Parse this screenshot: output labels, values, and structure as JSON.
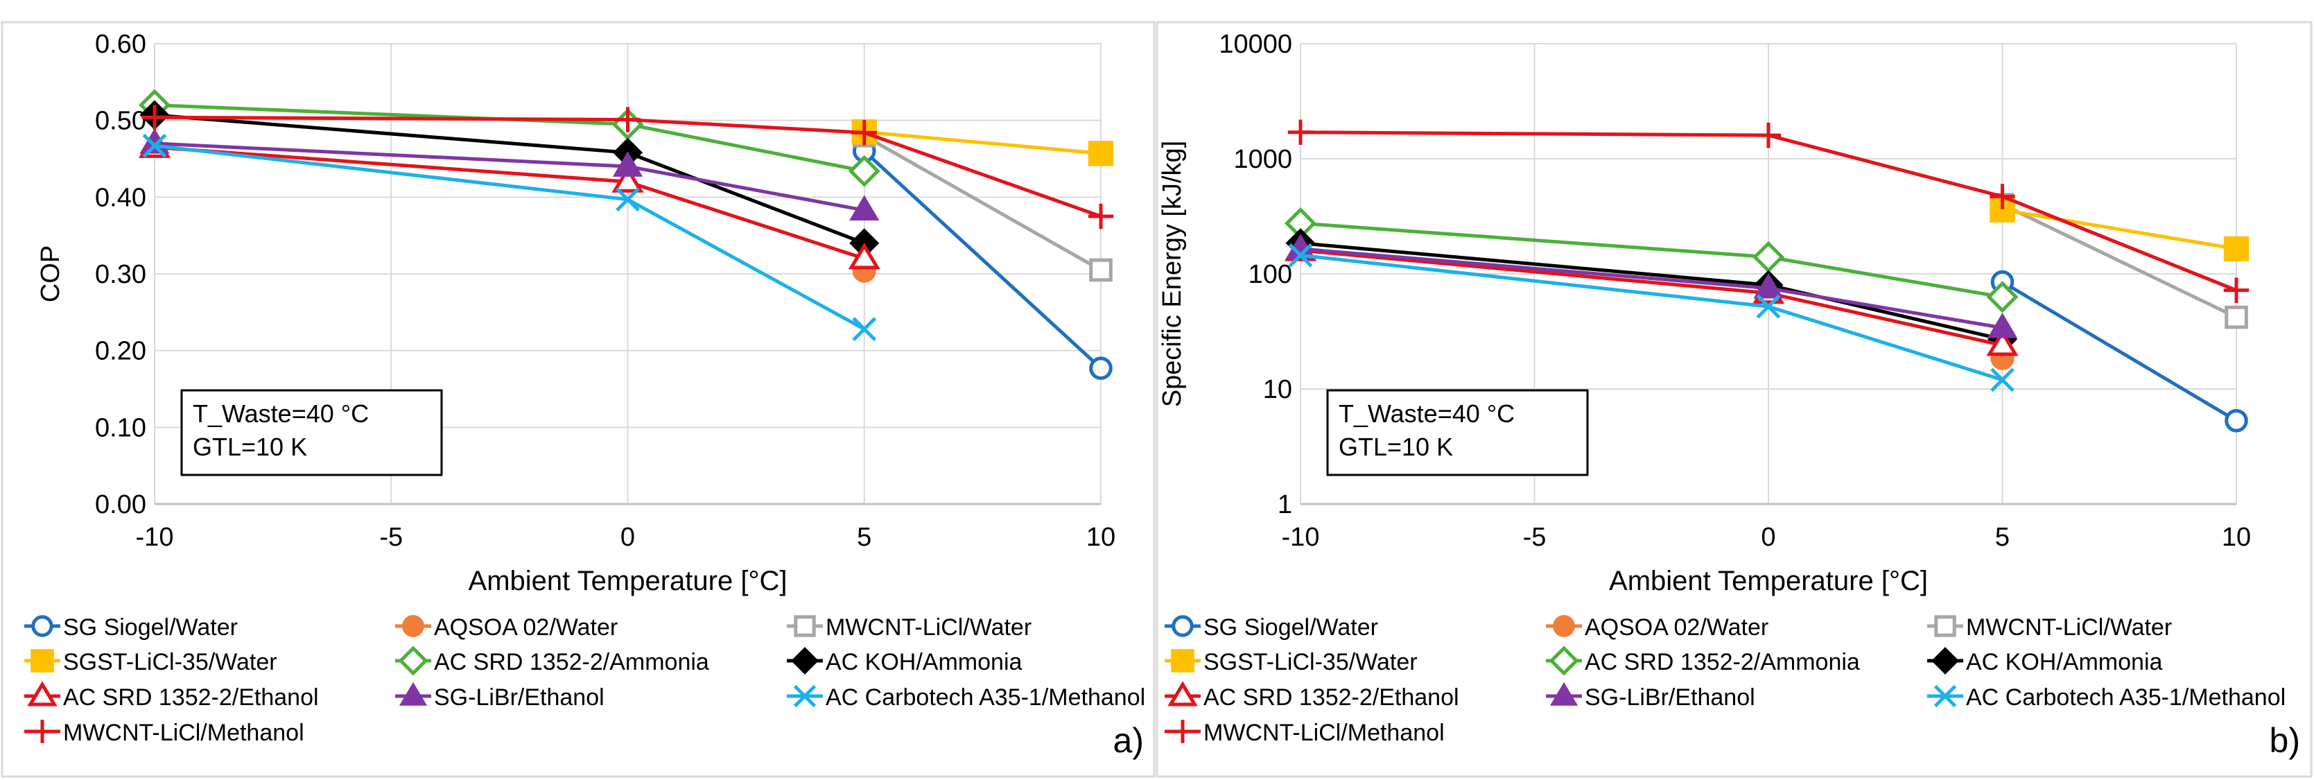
{
  "series_styles": {
    "SG Siogel/Water": {
      "color": "#1F6FC0",
      "marker": "circle-open"
    },
    "AQSOA 02/Water": {
      "color": "#F07E38",
      "marker": "circle-filled"
    },
    "MWCNT-LiCl/Water": {
      "color": "#A6A6A6",
      "marker": "square-open"
    },
    "SGST-LiCl-35/Water": {
      "color": "#FFC000",
      "marker": "square-filled"
    },
    "AC SRD 1352-2/Ammonia": {
      "color": "#4CAF3A",
      "marker": "diamond-open"
    },
    "AC KOH/Ammonia": {
      "color": "#000000",
      "marker": "diamond-filled"
    },
    "AC SRD 1352-2/Ethanol": {
      "color": "#E3131B",
      "marker": "triangle-open"
    },
    "SG-LiBr/Ethanol": {
      "color": "#7F36A4",
      "marker": "triangle-filled"
    },
    "AC Carbotech A35-1/Methanol": {
      "color": "#1CB0EB",
      "marker": "x"
    },
    "MWCNT-LiCl/Methanol": {
      "color": "#E3131B",
      "marker": "plus"
    }
  },
  "chart_data": [
    {
      "type": "line",
      "panel_label": "a)",
      "xlabel": "Ambient Temperature [°C]",
      "ylabel": "COP",
      "xlim": [
        -10,
        10
      ],
      "xticks": [
        -10,
        -5,
        0,
        5,
        10
      ],
      "ylim": [
        0,
        0.6
      ],
      "yticks": [
        "0.00",
        "0.10",
        "0.20",
        "0.30",
        "0.40",
        "0.50",
        "0.60"
      ],
      "yscale": "linear",
      "grid": true,
      "annotation": [
        "T_Waste=40 °C",
        "GTL=10 K"
      ],
      "series": [
        {
          "name": "SG Siogel/Water",
          "x": [
            5,
            10
          ],
          "y": [
            0.46,
            0.177
          ]
        },
        {
          "name": "AQSOA 02/Water",
          "x": [
            5
          ],
          "y": [
            0.304
          ]
        },
        {
          "name": "MWCNT-LiCl/Water",
          "x": [
            5,
            10
          ],
          "y": [
            0.48,
            0.305
          ]
        },
        {
          "name": "SGST-LiCl-35/Water",
          "x": [
            5,
            10
          ],
          "y": [
            0.485,
            0.457
          ]
        },
        {
          "name": "AC SRD 1352-2/Ammonia",
          "x": [
            -10,
            0,
            5
          ],
          "y": [
            0.52,
            0.495,
            0.434
          ]
        },
        {
          "name": "AC KOH/Ammonia",
          "x": [
            -10,
            0,
            5
          ],
          "y": [
            0.507,
            0.458,
            0.34
          ]
        },
        {
          "name": "AC SRD 1352-2/Ethanol",
          "x": [
            -10,
            0,
            5
          ],
          "y": [
            0.465,
            0.42,
            0.32
          ]
        },
        {
          "name": "SG-LiBr/Ethanol",
          "x": [
            -10,
            0,
            5
          ],
          "y": [
            0.47,
            0.44,
            0.383
          ]
        },
        {
          "name": "AC Carbotech A35-1/Methanol",
          "x": [
            -10,
            0,
            5
          ],
          "y": [
            0.467,
            0.397,
            0.228
          ]
        },
        {
          "name": "MWCNT-LiCl/Methanol",
          "x": [
            -10,
            0,
            5,
            10
          ],
          "y": [
            0.504,
            0.501,
            0.484,
            0.375
          ]
        }
      ]
    },
    {
      "type": "line",
      "panel_label": "b)",
      "xlabel": "Ambient Temperature [°C]",
      "ylabel": "Specific Energy [kJ/kg]",
      "xlim": [
        -10,
        10
      ],
      "xticks": [
        -10,
        -5,
        0,
        5,
        10
      ],
      "ylim": [
        1,
        10000
      ],
      "yticks": [
        "1",
        "10",
        "100",
        "1000",
        "10000"
      ],
      "yscale": "log",
      "grid": true,
      "annotation": [
        "T_Waste=40 °C",
        "GTL=10 K"
      ],
      "series": [
        {
          "name": "SG Siogel/Water",
          "x": [
            5,
            10
          ],
          "y": [
            85,
            5.3
          ]
        },
        {
          "name": "AQSOA 02/Water",
          "x": [
            5
          ],
          "y": [
            18.5
          ]
        },
        {
          "name": "MWCNT-LiCl/Water",
          "x": [
            5,
            10
          ],
          "y": [
            400,
            42
          ]
        },
        {
          "name": "SGST-LiCl-35/Water",
          "x": [
            5,
            10
          ],
          "y": [
            360,
            165
          ]
        },
        {
          "name": "AC SRD 1352-2/Ammonia",
          "x": [
            -10,
            0,
            5
          ],
          "y": [
            275,
            140,
            63
          ]
        },
        {
          "name": "AC KOH/Ammonia",
          "x": [
            -10,
            0,
            5
          ],
          "y": [
            185,
            80,
            27
          ]
        },
        {
          "name": "AC SRD 1352-2/Ethanol",
          "x": [
            -10,
            0,
            5
          ],
          "y": [
            160,
            68,
            24
          ]
        },
        {
          "name": "SG-LiBr/Ethanol",
          "x": [
            -10,
            0,
            5
          ],
          "y": [
            165,
            75,
            34
          ]
        },
        {
          "name": "AC Carbotech A35-1/Methanol",
          "x": [
            -10,
            0,
            5
          ],
          "y": [
            145,
            52,
            12
          ]
        },
        {
          "name": "MWCNT-LiCl/Methanol",
          "x": [
            -10,
            0,
            5,
            10
          ],
          "y": [
            1700,
            1600,
            470,
            72
          ]
        }
      ]
    }
  ],
  "legend": [
    "SG Siogel/Water",
    "AQSOA 02/Water",
    "MWCNT-LiCl/Water",
    "SGST-LiCl-35/Water",
    "AC SRD 1352-2/Ammonia",
    "AC KOH/Ammonia",
    "AC SRD 1352-2/Ethanol",
    "SG-LiBr/Ethanol",
    "AC Carbotech A35-1/Methanol",
    "MWCNT-LiCl/Methanol"
  ]
}
